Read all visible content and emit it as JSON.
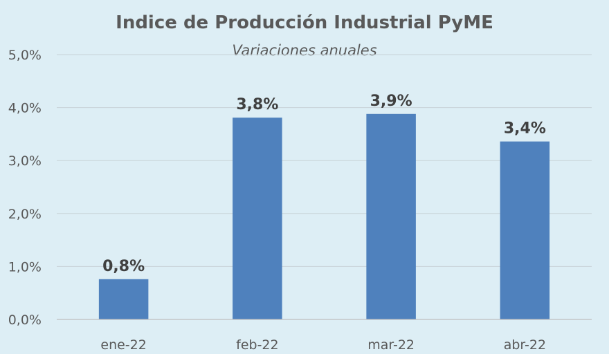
{
  "chart_data": {
    "type": "bar",
    "title": "Indice de Producción Industrial PyME",
    "subtitle": "Variaciones anuales",
    "categories": [
      "ene-22",
      "feb-22",
      "mar-22",
      "abr-22"
    ],
    "values": [
      0.8,
      3.8,
      3.9,
      3.4
    ],
    "bar_values": [
      0.76,
      3.81,
      3.88,
      3.36
    ],
    "data_labels": [
      "0,8%",
      "3,8%",
      "3,9%",
      "3,4%"
    ],
    "yticks": [
      "0,0%",
      "1,0%",
      "2,0%",
      "3,0%",
      "4,0%",
      "5,0%"
    ],
    "ytick_values": [
      0,
      1,
      2,
      3,
      4,
      5
    ],
    "ylim": [
      0,
      5
    ],
    "xlabel": "",
    "ylabel": "",
    "grid": true,
    "legend": "none",
    "colors": {
      "bar": "#4f81bd",
      "background": "#ddeef5"
    }
  }
}
